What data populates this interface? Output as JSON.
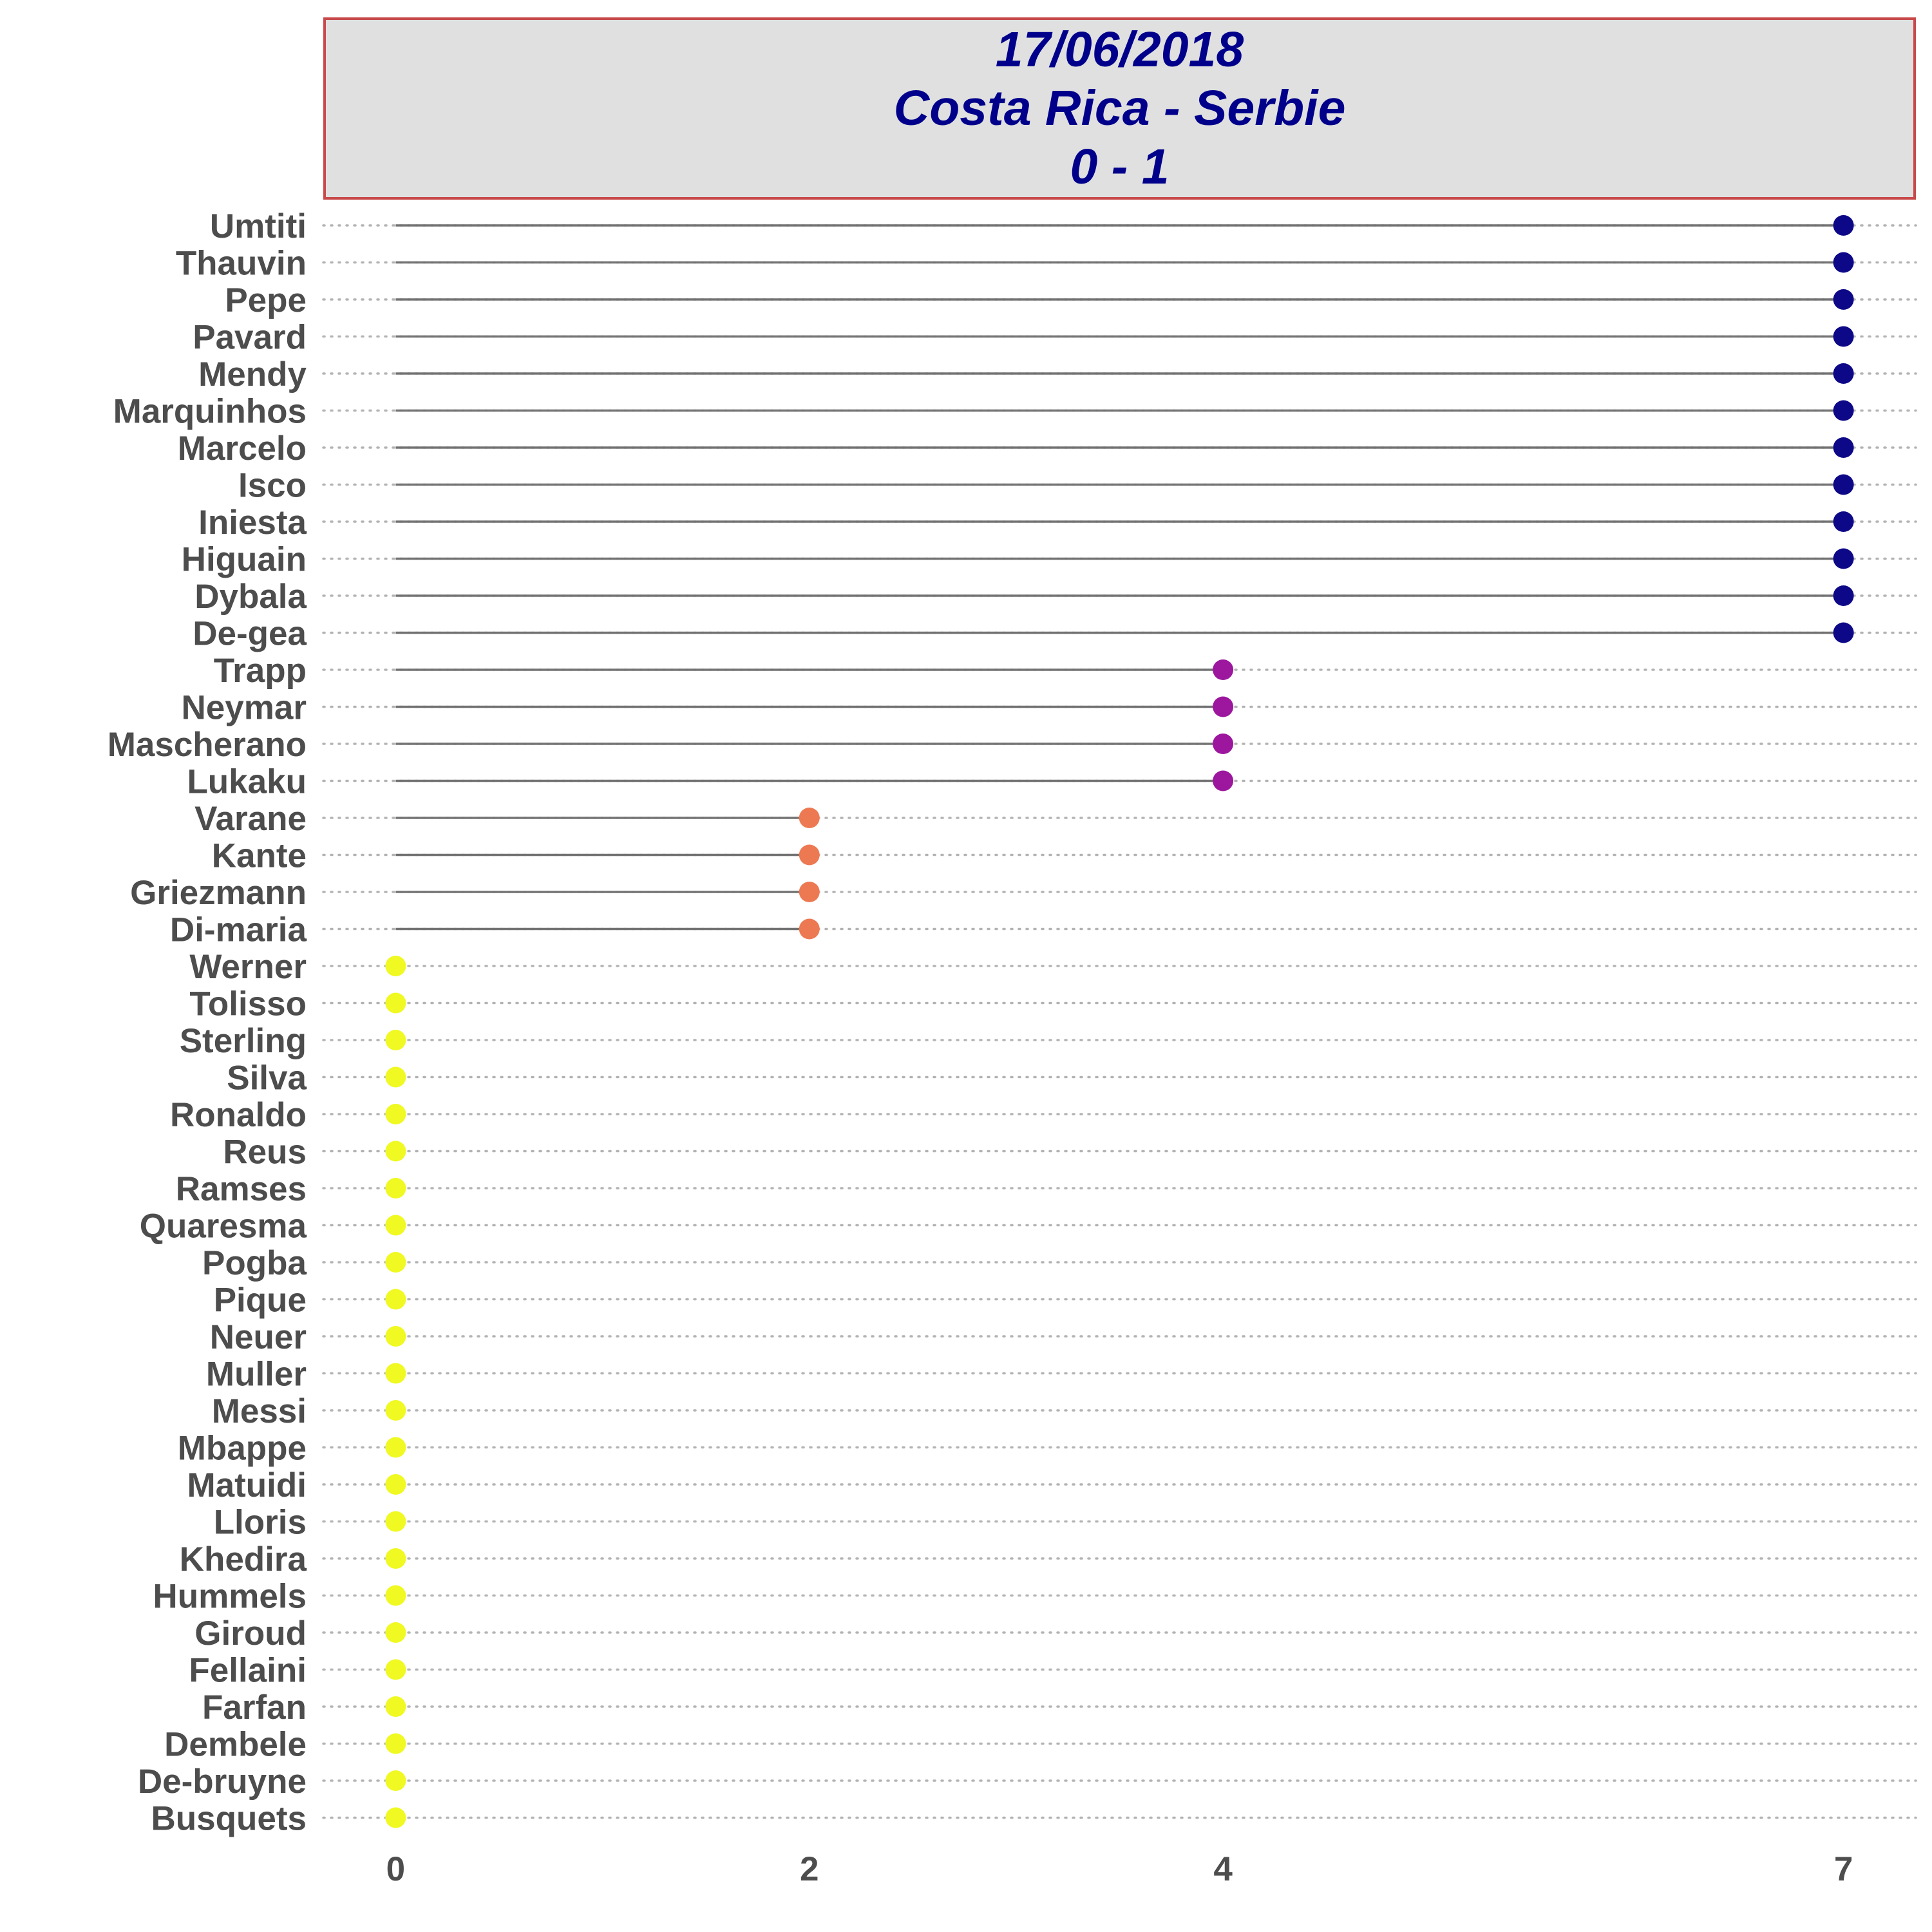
{
  "chart_data": {
    "type": "lollipop",
    "title_lines": [
      "17/06/2018",
      "Costa Rica - Serbie",
      "0 - 1"
    ],
    "xlabel": "",
    "ylabel": "",
    "xlim": [
      -0.35,
      7.35
    ],
    "x_ticks": [
      0,
      2,
      4,
      7
    ],
    "grid": "dotted horizontal",
    "categories": [
      "Umtiti",
      "Thauvin",
      "Pepe",
      "Pavard",
      "Mendy",
      "Marquinhos",
      "Marcelo",
      "Isco",
      "Iniesta",
      "Higuain",
      "Dybala",
      "De-gea",
      "Trapp",
      "Neymar",
      "Mascherano",
      "Lukaku",
      "Varane",
      "Kante",
      "Griezmann",
      "Di-maria",
      "Werner",
      "Tolisso",
      "Sterling",
      "Silva",
      "Ronaldo",
      "Reus",
      "Ramses",
      "Quaresma",
      "Pogba",
      "Pique",
      "Neuer",
      "Muller",
      "Messi",
      "Mbappe",
      "Matuidi",
      "Lloris",
      "Khedira",
      "Hummels",
      "Giroud",
      "Fellaini",
      "Farfan",
      "Dembele",
      "De-bruyne",
      "Busquets"
    ],
    "values": [
      7,
      7,
      7,
      7,
      7,
      7,
      7,
      7,
      7,
      7,
      7,
      7,
      4,
      4,
      4,
      4,
      2,
      2,
      2,
      2,
      0,
      0,
      0,
      0,
      0,
      0,
      0,
      0,
      0,
      0,
      0,
      0,
      0,
      0,
      0,
      0,
      0,
      0,
      0,
      0,
      0,
      0,
      0,
      0
    ],
    "point_colors": {
      "7": "#0d0887",
      "4": "#9c179e",
      "2": "#ed7953",
      "0": "#f0f921"
    }
  }
}
